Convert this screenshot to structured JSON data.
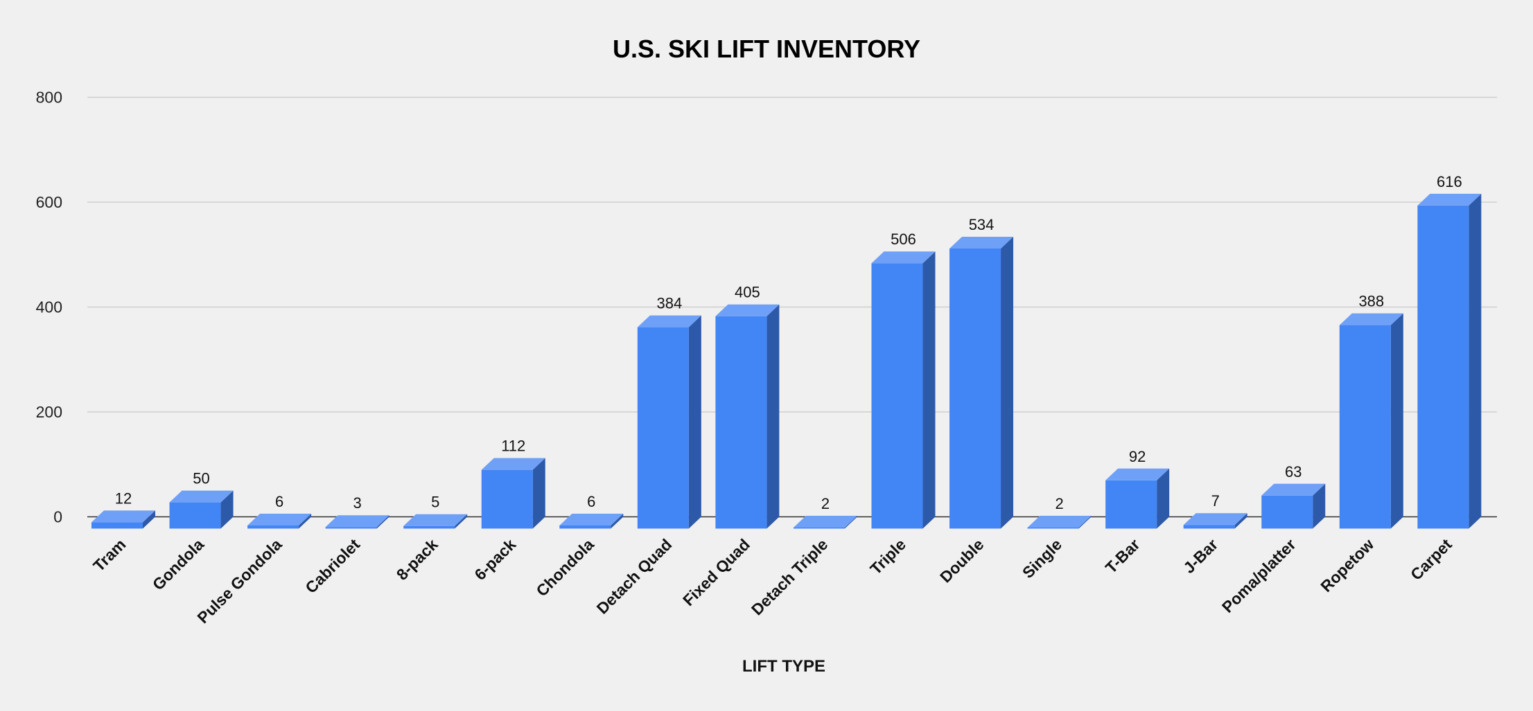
{
  "chart_data": {
    "type": "bar",
    "title": "U.S. SKI LIFT INVENTORY",
    "xlabel": "LIFT TYPE",
    "ylabel": "",
    "ylim": [
      0,
      800
    ],
    "yticks": [
      0,
      200,
      400,
      600,
      800
    ],
    "grid": true,
    "legend": "none",
    "categories": [
      "Tram",
      "Gondola",
      "Pulse Gondola",
      "Cabriolet",
      "8-pack",
      "6-pack",
      "Chondola",
      "Detach Quad",
      "Fixed Quad",
      "Detach Triple",
      "Triple",
      "Double",
      "Single",
      "T-Bar",
      "J-Bar",
      "Poma/platter",
      "Ropetow",
      "Carpet"
    ],
    "values": [
      12,
      50,
      6,
      3,
      5,
      112,
      6,
      384,
      405,
      2,
      506,
      534,
      2,
      92,
      7,
      63,
      388,
      616
    ],
    "colors": {
      "front": "#4285f4",
      "top": "#6fa0f7",
      "side": "#2d5aa8",
      "grid": "#c8c8c8",
      "baseline": "#333333",
      "background": "#f0f0f0"
    }
  }
}
